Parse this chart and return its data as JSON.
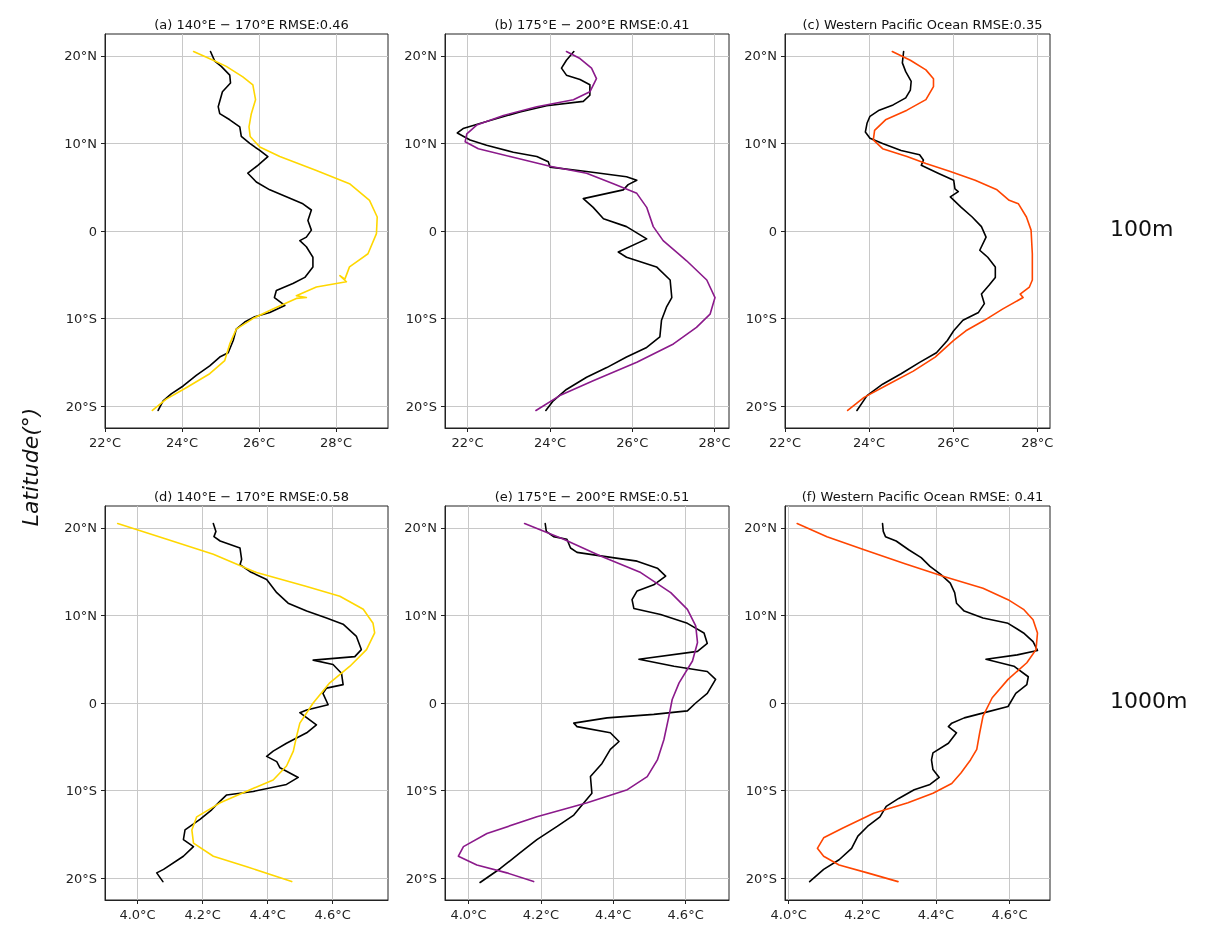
{
  "chart_data": [
    {
      "type": "line",
      "title": "(a) 140°E − 170°E RMSE:0.46",
      "ylabel": "Latitude(°)",
      "grid": true,
      "xlim": [
        22,
        29.35
      ],
      "xticks": [
        {
          "value": 22,
          "label": "22°C"
        },
        {
          "value": 24,
          "label": "24°C"
        },
        {
          "value": 26,
          "label": "26°C"
        },
        {
          "value": 28,
          "label": "28°C"
        }
      ],
      "ylim": [
        -22.5,
        22.5
      ],
      "yticks": [
        {
          "value": -20,
          "label": "20°S"
        },
        {
          "value": -10,
          "label": "10°S"
        },
        {
          "value": 0,
          "label": "0"
        },
        {
          "value": 10,
          "label": "10°N"
        },
        {
          "value": 20,
          "label": "20°N"
        }
      ],
      "series": [
        {
          "color": "#000000",
          "x": [
            24.74,
            24.85,
            25.02,
            25.24,
            25.26,
            25.05,
            24.94,
            24.98,
            25.24,
            25.5,
            25.54,
            25.76,
            26.02,
            26.23,
            25.97,
            25.71,
            25.93,
            26.28,
            26.71,
            27.14,
            27.36,
            27.27,
            27.36,
            27.23,
            27.06,
            27.23,
            27.4,
            27.4,
            27.19,
            26.88,
            26.45,
            26.4,
            26.67,
            26.28,
            25.89,
            25.63,
            25.41,
            25.33,
            25.2,
            24.98,
            24.72,
            24.37,
            24.03,
            23.72,
            23.51,
            23.38
          ],
          "values": [
            20.5,
            19.4,
            18.8,
            17.8,
            16.9,
            15.9,
            14.2,
            13.4,
            12.7,
            11.9,
            10.8,
            10,
            9.2,
            8.5,
            7.5,
            6.6,
            5.6,
            4.7,
            3.9,
            3.1,
            2.4,
            1.2,
            0.1,
            -0.7,
            -1.1,
            -1.8,
            -3,
            -4.1,
            -5.3,
            -6,
            -6.8,
            -7.6,
            -8.5,
            -9.3,
            -9.8,
            -10.4,
            -11.2,
            -12.5,
            -13.9,
            -14.4,
            -15.4,
            -16.5,
            -17.7,
            -18.6,
            -19.4,
            -20.5
          ]
        },
        {
          "color": "#ffd700",
          "x": [
            24.3,
            24.81,
            25.15,
            25.58,
            25.84,
            25.91,
            25.8,
            25.74,
            25.77,
            26.02,
            26.54,
            27.49,
            28.35,
            28.87,
            29.07,
            29.05,
            28.83,
            28.35,
            28.23,
            28.1,
            28.27,
            27.49,
            26.97,
            27.23,
            26.97,
            26.36,
            25.84,
            25.41,
            25.24,
            25.11,
            24.72,
            24.11,
            23.59,
            23.23
          ],
          "values": [
            20.5,
            19.5,
            18.8,
            17.6,
            16.7,
            15,
            13.4,
            11.9,
            10.8,
            9.6,
            8.5,
            6.9,
            5.4,
            3.5,
            1.6,
            -0.3,
            -2.6,
            -4.1,
            -5.5,
            -5.1,
            -5.8,
            -6.4,
            -7.4,
            -7.6,
            -7.7,
            -8.9,
            -10,
            -11.2,
            -12.9,
            -14.8,
            -16.3,
            -17.9,
            -19.2,
            -20.5
          ]
        }
      ]
    },
    {
      "type": "line",
      "title": "(b) 175°E − 200°E RMSE:0.41",
      "grid": true,
      "xlim": [
        21.45,
        28.35
      ],
      "xticks": [
        {
          "value": 22,
          "label": "22°C"
        },
        {
          "value": 24,
          "label": "24°C"
        },
        {
          "value": 26,
          "label": "26°C"
        },
        {
          "value": 28,
          "label": "28°C"
        }
      ],
      "ylim": [
        -22.5,
        22.5
      ],
      "yticks": [
        {
          "value": -20,
          "label": "20°S"
        },
        {
          "value": -10,
          "label": "10°S"
        },
        {
          "value": 0,
          "label": "0"
        },
        {
          "value": 10,
          "label": "10°N"
        },
        {
          "value": 20,
          "label": "20°N"
        }
      ],
      "series": [
        {
          "color": "#000000",
          "x": [
            24.58,
            24.4,
            24.28,
            24.4,
            24.73,
            24.97,
            24.97,
            24.81,
            23.92,
            23.27,
            22.46,
            21.89,
            21.75,
            22.06,
            22.46,
            23.11,
            23.68,
            23.96,
            24,
            24.89,
            25.86,
            26.11,
            25.9,
            25.78,
            24.81,
            25.05,
            25.3,
            25.86,
            26.35,
            25.66,
            25.86,
            26.59,
            26.92,
            26.96,
            26.83,
            26.71,
            26.67,
            26.35,
            25.86,
            25.38,
            24.89,
            24.4,
            24.08,
            23.9
          ],
          "values": [
            20.5,
            19.5,
            18.6,
            17.8,
            17.3,
            16.7,
            15.5,
            14.8,
            14.3,
            13.6,
            12.5,
            11.7,
            11.2,
            10.4,
            9.8,
            9,
            8.5,
            7.9,
            7.3,
            6.8,
            6.2,
            5.8,
            5.3,
            4.7,
            3.7,
            2.7,
            1.4,
            0.5,
            -0.9,
            -2.4,
            -3,
            -4.1,
            -5.6,
            -7.6,
            -8.7,
            -10.2,
            -12.1,
            -13.3,
            -14.4,
            -15.6,
            -16.7,
            -18.1,
            -19.4,
            -20.5
          ]
        },
        {
          "color": "#8b1a8b",
          "x": [
            24.4,
            24.73,
            25.01,
            25.13,
            24.97,
            24.57,
            23.68,
            22.87,
            22.22,
            21.98,
            21.94,
            22.26,
            23.03,
            24,
            24.89,
            25.54,
            26.11,
            26.35,
            26.51,
            26.75,
            27.32,
            27.81,
            28.01,
            27.89,
            27.56,
            27,
            26.11,
            25.05,
            24.24,
            23.66
          ],
          "values": [
            20.5,
            19.7,
            18.6,
            17.4,
            15.9,
            15,
            14.2,
            13.2,
            12.1,
            11.1,
            10.2,
            9.4,
            8.5,
            7.4,
            6.6,
            5.4,
            4.3,
            2.7,
            0.5,
            -1.1,
            -3.4,
            -5.6,
            -7.6,
            -9.5,
            -11,
            -12.9,
            -15,
            -17.1,
            -18.8,
            -20.5
          ]
        }
      ]
    },
    {
      "type": "line",
      "title": "(c) Western Pacific Ocean RMSE:0.35",
      "grid": true,
      "annotations": [
        "100m"
      ],
      "xlim": [
        22,
        28.3
      ],
      "xticks": [
        {
          "value": 22,
          "label": "22°C"
        },
        {
          "value": 24,
          "label": "24°C"
        },
        {
          "value": 26,
          "label": "26°C"
        },
        {
          "value": 28,
          "label": "28°C"
        }
      ],
      "ylim": [
        -22.5,
        22.5
      ],
      "yticks": [
        {
          "value": -20,
          "label": "20°S"
        },
        {
          "value": -10,
          "label": "10°S"
        },
        {
          "value": 0,
          "label": "0"
        },
        {
          "value": 10,
          "label": "10°N"
        },
        {
          "value": 20,
          "label": "20°N"
        }
      ],
      "series": [
        {
          "color": "#000000",
          "x": [
            24.82,
            24.79,
            24.87,
            25,
            24.98,
            24.87,
            24.57,
            24.24,
            24.02,
            23.95,
            23.91,
            24.02,
            24.32,
            24.76,
            25.2,
            25.29,
            25.24,
            25.64,
            26.01,
            26.04,
            26.12,
            25.93,
            26.19,
            26.45,
            26.67,
            26.78,
            26.63,
            26.82,
            27,
            27,
            26.85,
            26.67,
            26.74,
            26.6,
            26.23,
            26.01,
            25.86,
            25.6,
            25.2,
            24.76,
            24.32,
            23.95,
            23.71
          ],
          "values": [
            20.5,
            19.2,
            18.2,
            17.1,
            16.1,
            15.2,
            14.4,
            13.8,
            13.1,
            12.3,
            11.3,
            10.6,
            10,
            9.2,
            8.7,
            8.1,
            7.5,
            6.6,
            5.8,
            4.8,
            4.5,
            3.9,
            2.7,
            1.6,
            0.5,
            -0.7,
            -2.2,
            -3,
            -4.1,
            -5.3,
            -6.2,
            -7.2,
            -8.3,
            -9.3,
            -10.2,
            -11.4,
            -12.5,
            -13.9,
            -15,
            -16.3,
            -17.5,
            -18.8,
            -20.5
          ]
        },
        {
          "color": "#ff4500",
          "x": [
            24.55,
            24.98,
            25.35,
            25.53,
            25.53,
            25.35,
            24.9,
            24.39,
            24.13,
            24.1,
            24.32,
            24.9,
            25.35,
            25.93,
            26.52,
            27.04,
            27.33,
            27.55,
            27.74,
            27.85,
            27.88,
            27.88,
            27.81,
            27.59,
            27.66,
            27.18,
            26.74,
            26.3,
            26.01,
            25.57,
            25.05,
            24.46,
            23.88,
            23.49
          ],
          "values": [
            20.5,
            19.5,
            18.4,
            17.4,
            16.5,
            15,
            13.8,
            12.7,
            11.5,
            10.4,
            9.4,
            8.5,
            7.7,
            6.8,
            5.8,
            4.7,
            3.5,
            3.1,
            1.6,
            0.1,
            -2.6,
            -5.6,
            -6.4,
            -7.2,
            -7.6,
            -8.9,
            -10.2,
            -11.4,
            -12.5,
            -14.4,
            -16,
            -17.5,
            -19,
            -20.5
          ]
        }
      ]
    },
    {
      "type": "line",
      "title": "(d) 140°E − 170°E RMSE:0.58",
      "grid": true,
      "xlim": [
        3.9,
        4.77
      ],
      "xticks": [
        {
          "value": 4.0,
          "label": "4.0°C"
        },
        {
          "value": 4.2,
          "label": "4.2°C"
        },
        {
          "value": 4.4,
          "label": "4.4°C"
        },
        {
          "value": 4.6,
          "label": "4.6°C"
        }
      ],
      "ylim": [
        -22.5,
        22.5
      ],
      "yticks": [
        {
          "value": -20,
          "label": "20°S"
        },
        {
          "value": -10,
          "label": "10°S"
        },
        {
          "value": 0,
          "label": "0"
        },
        {
          "value": 10,
          "label": "10°N"
        },
        {
          "value": 20,
          "label": "20°N"
        }
      ],
      "series": [
        {
          "color": "#000000",
          "x": [
            4.233,
            4.241,
            4.235,
            4.254,
            4.315,
            4.32,
            4.315,
            4.346,
            4.397,
            4.428,
            4.463,
            4.52,
            4.581,
            4.632,
            4.673,
            4.688,
            4.668,
            4.54,
            4.601,
            4.627,
            4.632,
            4.581,
            4.57,
            4.586,
            4.52,
            4.499,
            4.55,
            4.52,
            4.458,
            4.417,
            4.397,
            4.428,
            4.438,
            4.494,
            4.458,
            4.356,
            4.274,
            4.254,
            4.228,
            4.192,
            4.146,
            4.141,
            4.172,
            4.141,
            4.08,
            4.059,
            4.078
          ],
          "values": [
            20.5,
            19.6,
            19,
            18.5,
            17.7,
            16.4,
            15.8,
            15,
            14.1,
            12.6,
            11.4,
            10.5,
            9.7,
            9,
            7.6,
            6.1,
            5.3,
            4.9,
            4.4,
            3.4,
            2.1,
            1.7,
            1.1,
            -0.2,
            -0.8,
            -1.1,
            -2.5,
            -3.4,
            -4.6,
            -5.5,
            -6.1,
            -6.7,
            -7.4,
            -8.5,
            -9.3,
            -10.1,
            -10.5,
            -11.2,
            -12.2,
            -13.3,
            -14.5,
            -15.6,
            -16.4,
            -17.5,
            -19,
            -19.4,
            -20.4
          ]
        },
        {
          "color": "#ffd700",
          "x": [
            3.939,
            4.09,
            4.233,
            4.366,
            4.52,
            4.622,
            4.694,
            4.724,
            4.729,
            4.704,
            4.653,
            4.591,
            4.54,
            4.499,
            4.489,
            4.479,
            4.458,
            4.417,
            4.346,
            4.254,
            4.182,
            4.167,
            4.172,
            4.233,
            4.336,
            4.474
          ],
          "values": [
            20.5,
            18.7,
            17,
            14.9,
            13.3,
            12.2,
            10.7,
            9.1,
            8,
            6.1,
            4.2,
            2.3,
            0,
            -2.3,
            -3.8,
            -5.5,
            -7.2,
            -8.8,
            -9.9,
            -11.4,
            -13,
            -14.5,
            -16,
            -17.5,
            -18.7,
            -20.4
          ]
        }
      ]
    },
    {
      "type": "line",
      "title": "(e) 175°E − 200°E RMSE:0.51",
      "grid": true,
      "xlim": [
        3.935,
        4.72
      ],
      "xticks": [
        {
          "value": 4.0,
          "label": "4.0°C"
        },
        {
          "value": 4.2,
          "label": "4.2°C"
        },
        {
          "value": 4.4,
          "label": "4.4°C"
        },
        {
          "value": 4.6,
          "label": "4.6°C"
        }
      ],
      "ylim": [
        -22.5,
        22.5
      ],
      "yticks": [
        {
          "value": -20,
          "label": "20°S"
        },
        {
          "value": -10,
          "label": "10°S"
        },
        {
          "value": 0,
          "label": "0"
        },
        {
          "value": 10,
          "label": "10°N"
        },
        {
          "value": 20,
          "label": "20°N"
        }
      ],
      "series": [
        {
          "color": "#000000",
          "x": [
            4.212,
            4.215,
            4.235,
            4.272,
            4.282,
            4.3,
            4.365,
            4.466,
            4.522,
            4.545,
            4.512,
            4.466,
            4.452,
            4.457,
            4.531,
            4.605,
            4.651,
            4.66,
            4.633,
            4.471,
            4.568,
            4.66,
            4.683,
            4.66,
            4.628,
            4.605,
            4.512,
            4.383,
            4.291,
            4.3,
            4.392,
            4.416,
            4.392,
            4.369,
            4.337,
            4.341,
            4.319,
            4.291,
            4.245,
            4.189,
            4.143,
            4.088,
            4.032
          ],
          "values": [
            20.5,
            19.6,
            19,
            18.7,
            17.7,
            17.2,
            16.8,
            16.2,
            15.4,
            14.5,
            13.5,
            12.8,
            11.8,
            10.8,
            10.1,
            9.1,
            8,
            6.8,
            5.9,
            5,
            4.2,
            3.6,
            2.7,
            1.1,
            0,
            -0.9,
            -1.3,
            -1.7,
            -2.3,
            -2.7,
            -3.4,
            -4.4,
            -5.3,
            -6.9,
            -8.4,
            -10.3,
            -11.4,
            -12.8,
            -14.1,
            -15.6,
            -17.1,
            -18.9,
            -20.5
          ]
        },
        {
          "color": "#8b1a8b",
          "x": [
            4.155,
            4.263,
            4.365,
            4.476,
            4.559,
            4.605,
            4.628,
            4.633,
            4.619,
            4.582,
            4.563,
            4.554,
            4.54,
            4.522,
            4.494,
            4.439,
            4.328,
            4.189,
            4.051,
            3.986,
            3.972,
            4.023,
            4.106,
            4.18
          ],
          "values": [
            20.5,
            18.7,
            16.8,
            14.9,
            12.6,
            10.7,
            8.8,
            6.9,
            4.8,
            2.3,
            0.4,
            -1.5,
            -4.2,
            -6.5,
            -8.4,
            -9.9,
            -11.4,
            -13,
            -14.9,
            -16.4,
            -17.5,
            -18.5,
            -19.4,
            -20.4
          ]
        }
      ]
    },
    {
      "type": "line",
      "title": "(f) Western Pacific Ocean RMSE: 0.41",
      "grid": true,
      "annotations": [
        "1000m"
      ],
      "xlim": [
        3.99,
        4.71
      ],
      "xticks": [
        {
          "value": 4.0,
          "label": "4.0°C"
        },
        {
          "value": 4.2,
          "label": "4.2°C"
        },
        {
          "value": 4.4,
          "label": "4.4°C"
        },
        {
          "value": 4.6,
          "label": "4.6°C"
        }
      ],
      "ylim": [
        -22.5,
        22.5
      ],
      "yticks": [
        {
          "value": -20,
          "label": "20°S"
        },
        {
          "value": -10,
          "label": "10°S"
        },
        {
          "value": 0,
          "label": "0"
        },
        {
          "value": 10,
          "label": "10°N"
        },
        {
          "value": 20,
          "label": "20°N"
        }
      ],
      "series": [
        {
          "color": "#000000",
          "x": [
            4.255,
            4.257,
            4.263,
            4.292,
            4.326,
            4.36,
            4.384,
            4.413,
            4.439,
            4.451,
            4.456,
            4.477,
            4.528,
            4.596,
            4.638,
            4.664,
            4.676,
            4.621,
            4.536,
            4.612,
            4.651,
            4.647,
            4.617,
            4.596,
            4.532,
            4.477,
            4.443,
            4.434,
            4.456,
            4.434,
            4.392,
            4.388,
            4.392,
            4.409,
            4.384,
            4.341,
            4.299,
            4.265,
            4.248,
            4.214,
            4.188,
            4.171,
            4.137,
            4.095,
            4.057
          ],
          "values": [
            20.5,
            19.6,
            19,
            18.5,
            17.5,
            16.6,
            15.6,
            14.7,
            13.7,
            12.6,
            11.4,
            10.5,
            9.7,
            9.1,
            8,
            7,
            6,
            5.5,
            5,
            4.2,
            3,
            2.1,
            1.1,
            -0.4,
            -1.1,
            -1.7,
            -2.3,
            -2.7,
            -3.4,
            -4.6,
            -5.7,
            -6.5,
            -7.6,
            -8.5,
            -9.3,
            -9.9,
            -10.9,
            -11.8,
            -13,
            -14.1,
            -15.2,
            -16.6,
            -17.9,
            -19,
            -20.4
          ]
        },
        {
          "color": "#ff4500",
          "x": [
            4.023,
            4.104,
            4.205,
            4.316,
            4.426,
            4.528,
            4.596,
            4.638,
            4.664,
            4.676,
            4.672,
            4.647,
            4.596,
            4.553,
            4.528,
            4.519,
            4.511,
            4.494,
            4.468,
            4.443,
            4.392,
            4.324,
            4.231,
            4.146,
            4.095,
            4.078,
            4.095,
            4.137,
            4.214,
            4.297
          ],
          "values": [
            20.5,
            19,
            17.5,
            15.9,
            14.4,
            13.1,
            11.8,
            10.7,
            9.5,
            8,
            6.1,
            4.6,
            2.7,
            0.6,
            -1.5,
            -3.4,
            -5.3,
            -6.5,
            -8,
            -9.2,
            -10.3,
            -11.4,
            -12.6,
            -14.3,
            -15.4,
            -16.6,
            -17.5,
            -18.5,
            -19.4,
            -20.4
          ]
        }
      ]
    }
  ]
}
